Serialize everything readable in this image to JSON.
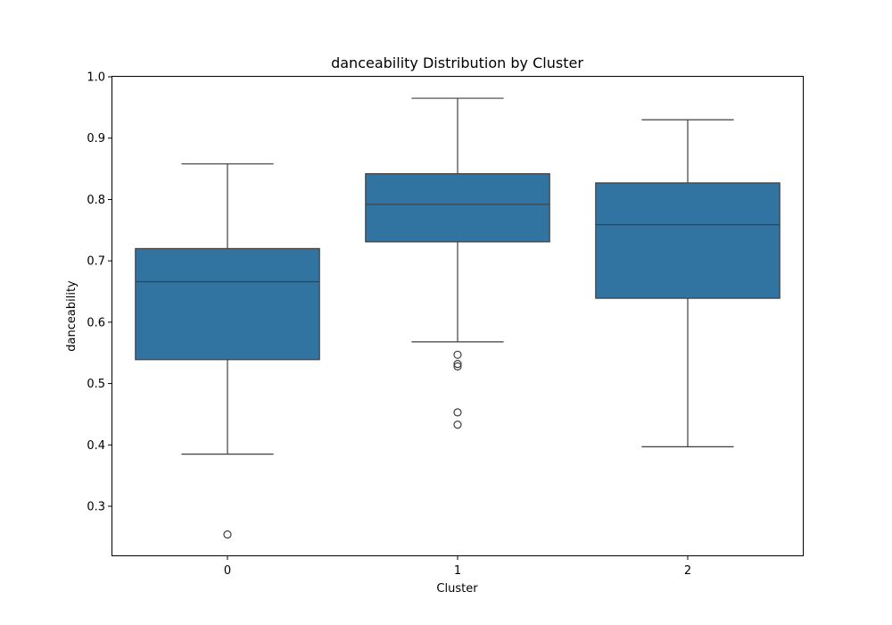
{
  "chart_data": {
    "type": "box",
    "title": "danceability Distribution by Cluster",
    "xlabel": "Cluster",
    "ylabel": "danceability",
    "ylim": [
      0.22,
      1.0
    ],
    "y_ticks": [
      "0.3",
      "0.4",
      "0.5",
      "0.6",
      "0.7",
      "0.8",
      "0.9",
      "1.0"
    ],
    "categories": [
      "0",
      "1",
      "2"
    ],
    "box_color": "#3274a1",
    "line_color": "#3f3f3f",
    "grid": false,
    "boxes": [
      {
        "category": "0",
        "whisker_low": 0.385,
        "q1": 0.539,
        "median": 0.666,
        "q3": 0.72,
        "whisker_high": 0.858,
        "outliers": [
          0.254
        ]
      },
      {
        "category": "1",
        "whisker_low": 0.568,
        "q1": 0.731,
        "median": 0.792,
        "q3": 0.842,
        "whisker_high": 0.965,
        "outliers": [
          0.547,
          0.532,
          0.528,
          0.453,
          0.433
        ]
      },
      {
        "category": "2",
        "whisker_low": 0.397,
        "q1": 0.639,
        "median": 0.759,
        "q3": 0.827,
        "whisker_high": 0.93,
        "outliers": []
      }
    ]
  }
}
